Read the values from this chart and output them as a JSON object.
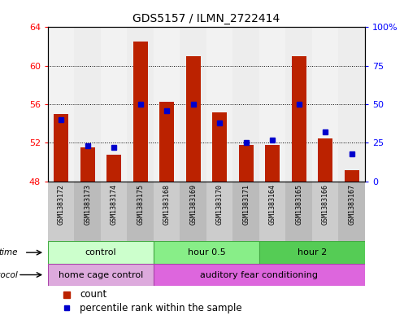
{
  "title": "GDS5157 / ILMN_2722414",
  "samples": [
    "GSM1383172",
    "GSM1383173",
    "GSM1383174",
    "GSM1383175",
    "GSM1383168",
    "GSM1383169",
    "GSM1383170",
    "GSM1383171",
    "GSM1383164",
    "GSM1383165",
    "GSM1383166",
    "GSM1383167"
  ],
  "counts": [
    55.0,
    51.5,
    50.8,
    62.5,
    56.3,
    61.0,
    55.2,
    51.8,
    51.8,
    61.0,
    52.5,
    49.2
  ],
  "percentiles": [
    40,
    23,
    22,
    50,
    46,
    50,
    38,
    25,
    27,
    50,
    32,
    18
  ],
  "ylim_left": [
    48,
    64
  ],
  "ylim_right": [
    0,
    100
  ],
  "yticks_left": [
    48,
    52,
    56,
    60,
    64
  ],
  "yticks_right": [
    0,
    25,
    50,
    75,
    100
  ],
  "bar_color": "#bb2200",
  "dot_color": "#0000cc",
  "bar_width": 0.55,
  "time_groups": [
    {
      "label": "control",
      "start": 0,
      "end": 4,
      "color": "#ccffcc"
    },
    {
      "label": "hour 0.5",
      "start": 4,
      "end": 8,
      "color": "#88ee88"
    },
    {
      "label": "hour 2",
      "start": 8,
      "end": 12,
      "color": "#55cc55"
    }
  ],
  "protocol_groups": [
    {
      "label": "home cage control",
      "start": 0,
      "end": 4,
      "color": "#ddaadd"
    },
    {
      "label": "auditory fear conditioning",
      "start": 4,
      "end": 12,
      "color": "#dd66dd"
    }
  ],
  "background_color": "#ffffff",
  "sample_band_color": "#cccccc",
  "sample_band_color2": "#bbbbbb",
  "legend_count_label": "count",
  "legend_percentile_label": "percentile rank within the sample",
  "base_value": 48,
  "ytick_fontsize": 8,
  "sample_fontsize": 6,
  "title_fontsize": 10,
  "group_fontsize": 8
}
